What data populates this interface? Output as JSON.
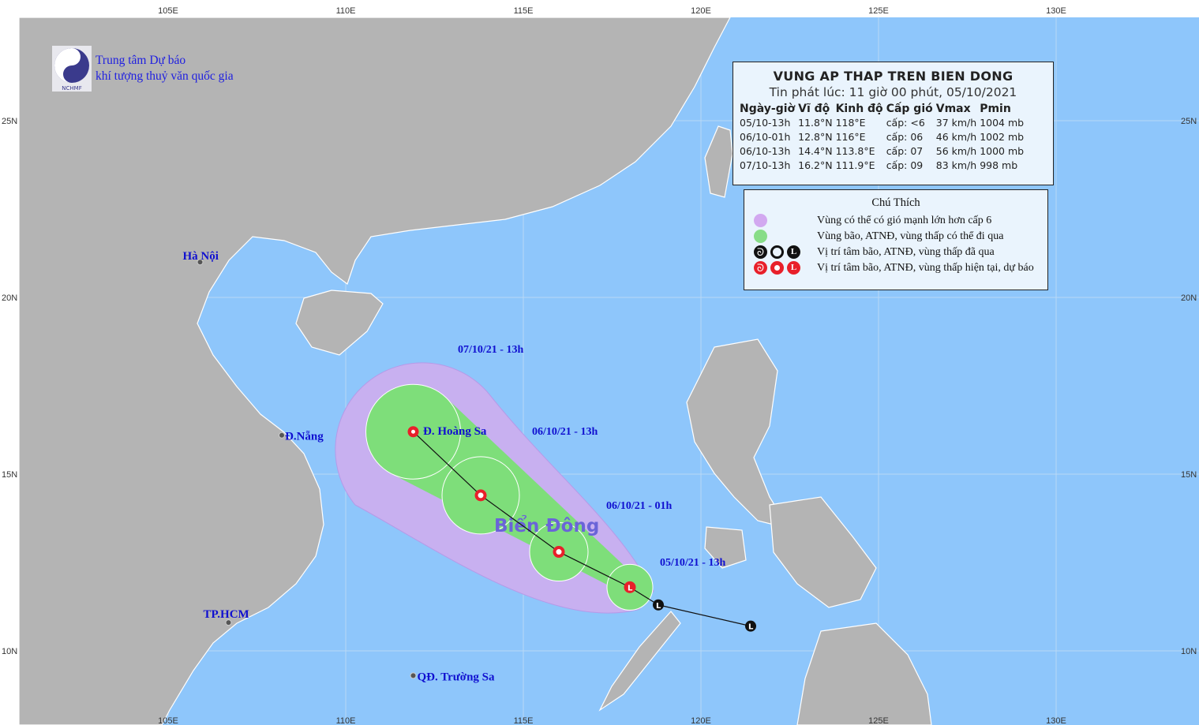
{
  "map": {
    "region_label": "Biển Đông",
    "lon_ticks": [
      "105E",
      "110E",
      "115E",
      "120E",
      "125E",
      "130E"
    ],
    "lat_ticks": [
      "25N",
      "20N",
      "15N",
      "10N"
    ],
    "places": [
      {
        "name": "Hà Nội",
        "lon": 105.9,
        "lat": 21.0
      },
      {
        "name": "Đ.Nẵng",
        "lon": 108.2,
        "lat": 16.1
      },
      {
        "name": "TP.HCM",
        "lon": 106.7,
        "lat": 10.8
      },
      {
        "name": "Đ. Hoàng Sa",
        "lon": 112.0,
        "lat": 16.2
      },
      {
        "name": "QĐ. Trường Sa",
        "lon": 111.9,
        "lat": 9.3
      }
    ],
    "forecast_labels": [
      "07/10/21 - 13h",
      "06/10/21 - 13h",
      "06/10/21 - 01h",
      "05/10/21 - 13h"
    ],
    "track_past": [
      {
        "lon": 121.4,
        "lat": 10.7
      },
      {
        "lon": 118.8,
        "lat": 11.3
      }
    ],
    "track_forecast": [
      {
        "lon": 118,
        "lat": 11.8
      },
      {
        "lon": 116,
        "lat": 12.8
      },
      {
        "lon": 113.8,
        "lat": 14.4
      },
      {
        "lon": 111.9,
        "lat": 16.2
      }
    ],
    "colors": {
      "sea": "#8ec6fb",
      "land": "#b4b4b4",
      "cone_purple": "#c8b0f0",
      "cone_green": "#7ede7a",
      "symbol_current": "#e8202a",
      "symbol_past": "#111111"
    }
  },
  "org": {
    "line1": "Trung tâm Dự báo",
    "line2": "khí tượng thuỷ văn quốc gia",
    "logo_text": "NCHMF"
  },
  "info": {
    "title": "VUNG AP THAP TREN BIEN DONG",
    "issued": "Tin phát lúc: 11 giờ 00 phút, 05/10/2021",
    "headers": [
      "Ngày-giờ",
      "Vĩ độ",
      "Kinh độ",
      "Cấp gió",
      "Vmax",
      "Pmin"
    ],
    "rows": [
      [
        "05/10-13h",
        "11.8°N",
        "118°E",
        "cấp: <6",
        "37 km/h",
        "1004 mb"
      ],
      [
        "06/10-01h",
        "12.8°N",
        "116°E",
        "cấp: 06",
        "46 km/h",
        "1002 mb"
      ],
      [
        "06/10-13h",
        "14.4°N",
        "113.8°E",
        "cấp: 07",
        "56 km/h",
        "1000 mb"
      ],
      [
        "07/10-13h",
        "16.2°N",
        "111.9°E",
        "cấp: 09",
        "83 km/h",
        "998 mb"
      ]
    ]
  },
  "legend": {
    "title": "Chú Thích",
    "items": [
      "Vùng có thể có gió mạnh lớn hơn cấp 6",
      "Vùng bão, ATNĐ, vùng thấp có thể đi qua",
      "Vị trí tâm bão, ATNĐ, vùng thấp đã qua",
      "Vị trí tâm bão, ATNĐ, vùng thấp hiện tại, dự báo"
    ]
  }
}
